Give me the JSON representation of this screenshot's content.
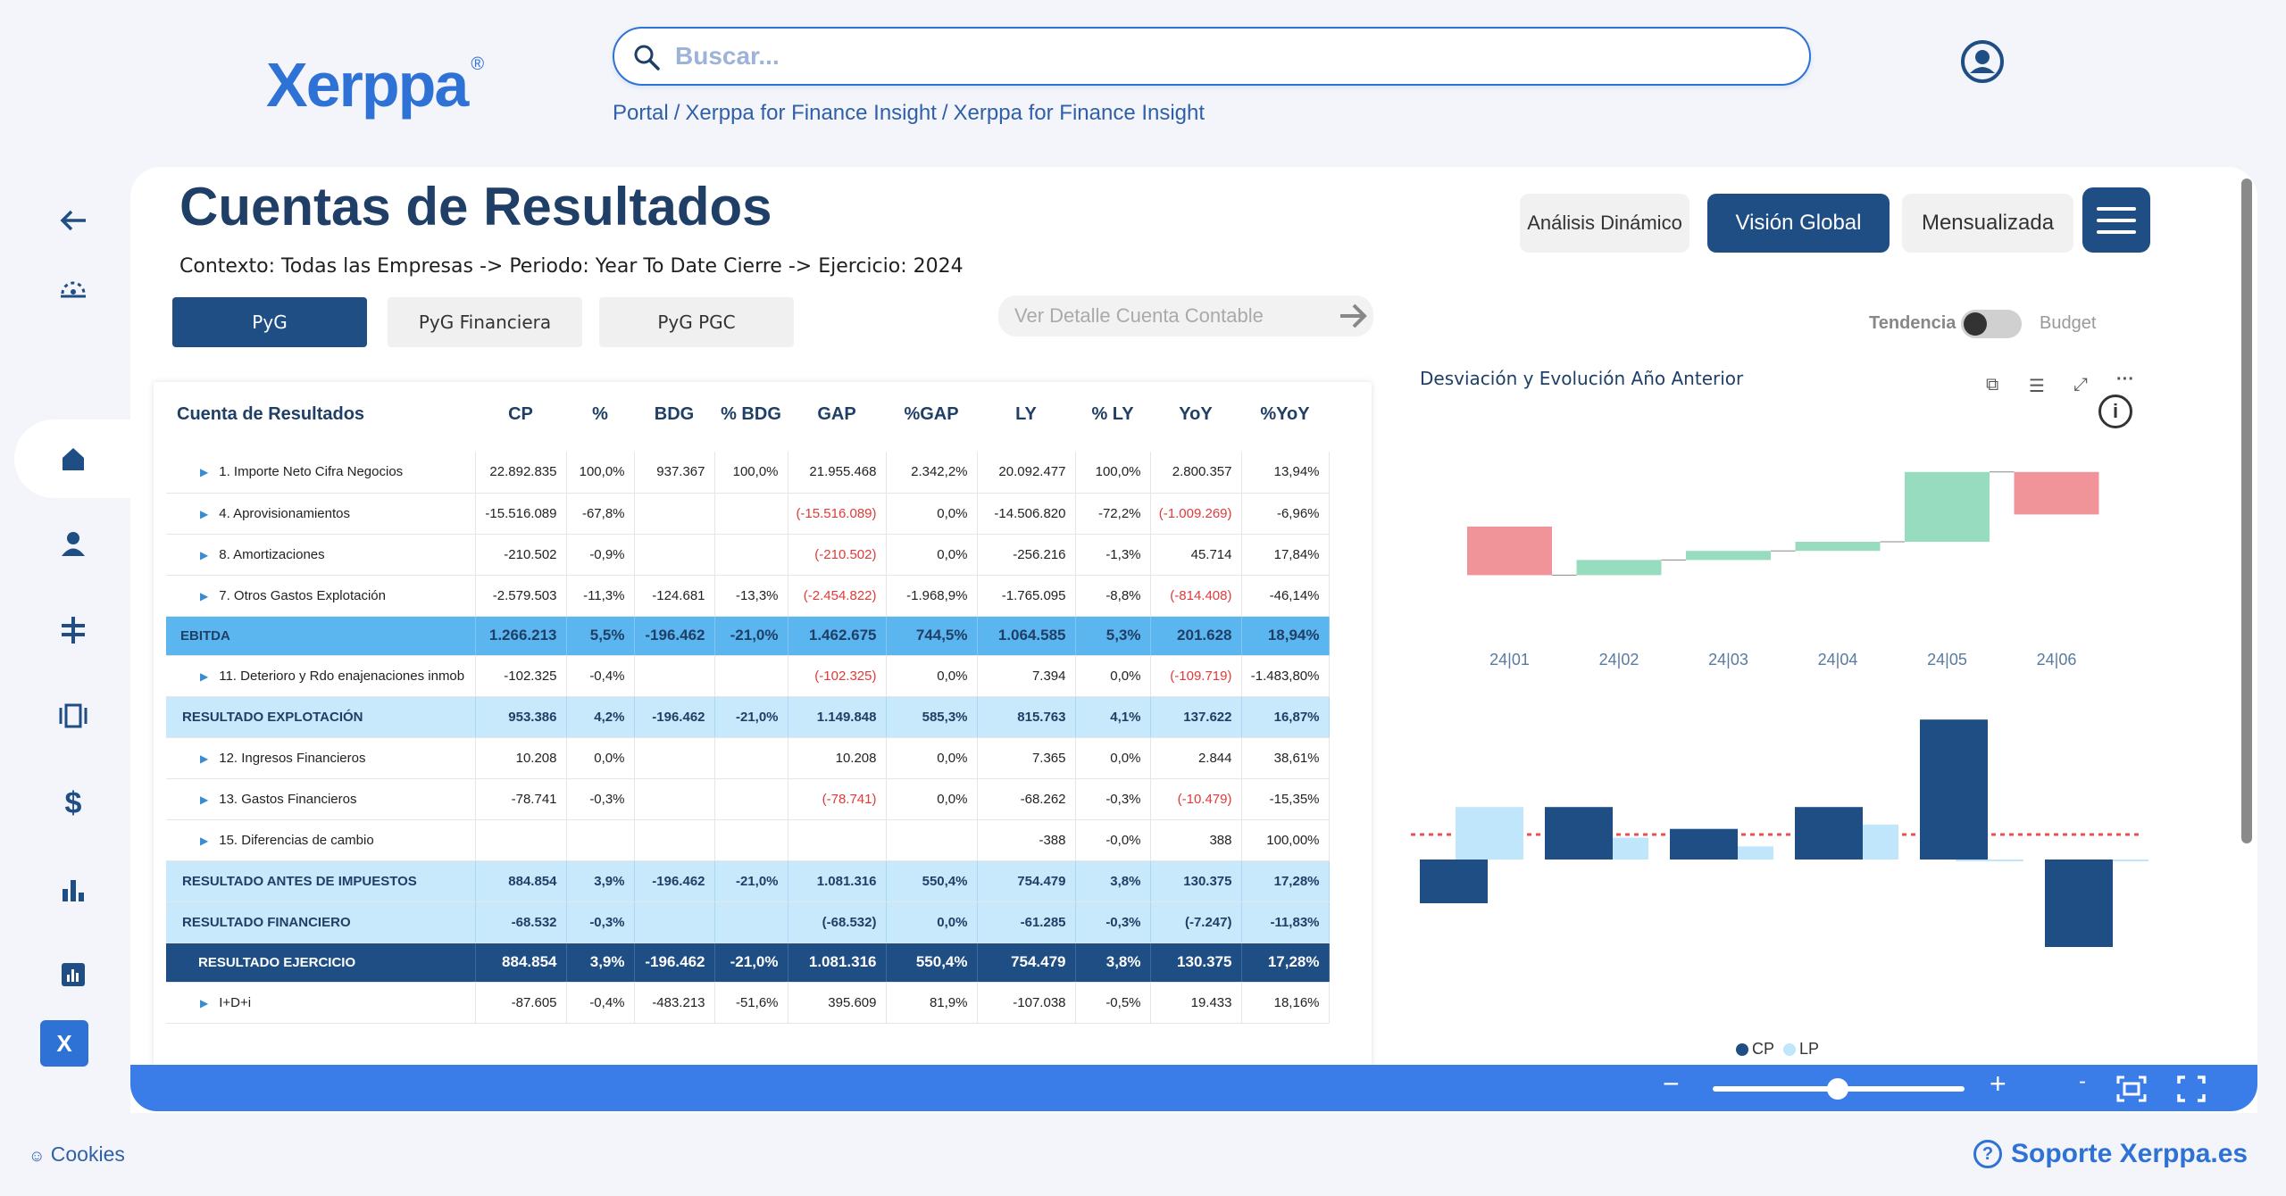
{
  "header": {
    "logo": "Xerppa",
    "logo_mark": "®",
    "search_placeholder": "Buscar...",
    "breadcrumbs": [
      "Portal",
      "Xerppa for Finance Insight",
      "Xerppa for Finance Insight"
    ]
  },
  "sidebar": {
    "items": [
      "back-arrow-icon",
      "dashboard-icon",
      "home-icon",
      "user-icon",
      "adjust-icon",
      "gallery-icon",
      "dollar-icon",
      "bar-chart-icon",
      "report-chart-icon"
    ],
    "x_button": "X"
  },
  "page": {
    "title": "Cuentas de Resultados",
    "context": "Contexto: Todas las Empresas -> Periodo: Year To Date Cierre -> Ejercicio: 2024",
    "buttons": {
      "analisis": "Análisis Dinámico",
      "vision": "Visión Global",
      "mensualizada": "Mensualizada"
    },
    "tabs": [
      "PyG",
      "PyG Financiera",
      "PyG PGC"
    ],
    "detail_placeholder": "Ver Detalle Cuenta Contable",
    "toggle_left": "Tendencia",
    "toggle_right": "Budget"
  },
  "table": {
    "headers": [
      "Cuenta de Resultados",
      "CP",
      "%",
      "BDG",
      "% BDG",
      "GAP",
      "%GAP",
      "LY",
      "% LY",
      "YoY",
      "%YoY"
    ],
    "rows": [
      {
        "type": "item",
        "cells": [
          "1. Importe Neto Cifra Negocios",
          "22.892.835",
          "100,0%",
          "937.367",
          "100,0%",
          "21.955.468",
          "2.342,2%",
          "20.092.477",
          "100,0%",
          "2.800.357",
          "13,94%"
        ]
      },
      {
        "type": "item",
        "cells": [
          "4. Aprovisionamientos",
          "-15.516.089",
          "-67,8%",
          "",
          "",
          "(-15.516.089)",
          "0,0%",
          "-14.506.820",
          "-72,2%",
          "(-1.009.269)",
          "-6,96%"
        ]
      },
      {
        "type": "item",
        "cells": [
          "8. Amortizaciones",
          "-210.502",
          "-0,9%",
          "",
          "",
          "(-210.502)",
          "0,0%",
          "-256.216",
          "-1,3%",
          "45.714",
          "17,84%"
        ]
      },
      {
        "type": "item",
        "cells": [
          "7. Otros Gastos Explotación",
          "-2.579.503",
          "-11,3%",
          "-124.681",
          "-13,3%",
          "(-2.454.822)",
          "-1.968,9%",
          "-1.765.095",
          "-8,8%",
          "(-814.408)",
          "-46,14%"
        ]
      },
      {
        "type": "ebitda",
        "cells": [
          "EBITDA",
          "1.266.213",
          "5,5%",
          "-196.462",
          "-21,0%",
          "1.462.675",
          "744,5%",
          "1.064.585",
          "5,3%",
          "201.628",
          "18,94%"
        ]
      },
      {
        "type": "item",
        "cells": [
          "11. Deterioro y Rdo enajenaciones inmob",
          "-102.325",
          "-0,4%",
          "",
          "",
          "(-102.325)",
          "0,0%",
          "7.394",
          "0,0%",
          "(-109.719)",
          "-1.483,80%"
        ]
      },
      {
        "type": "sub",
        "cells": [
          "RESULTADO EXPLOTACIÓN",
          "953.386",
          "4,2%",
          "-196.462",
          "-21,0%",
          "1.149.848",
          "585,3%",
          "815.763",
          "4,1%",
          "137.622",
          "16,87%"
        ]
      },
      {
        "type": "item",
        "cells": [
          "12. Ingresos Financieros",
          "10.208",
          "0,0%",
          "",
          "",
          "10.208",
          "0,0%",
          "7.365",
          "0,0%",
          "2.844",
          "38,61%"
        ]
      },
      {
        "type": "item",
        "cells": [
          "13. Gastos Financieros",
          "-78.741",
          "-0,3%",
          "",
          "",
          "(-78.741)",
          "0,0%",
          "-68.262",
          "-0,3%",
          "(-10.479)",
          "-15,35%"
        ]
      },
      {
        "type": "item",
        "cells": [
          "15. Diferencias de cambio",
          "",
          "",
          "",
          "",
          "",
          "",
          "-388",
          "-0,0%",
          "388",
          "100,00%"
        ]
      },
      {
        "type": "sub",
        "cells": [
          "RESULTADO ANTES DE IMPUESTOS",
          "884.854",
          "3,9%",
          "-196.462",
          "-21,0%",
          "1.081.316",
          "550,4%",
          "754.479",
          "3,8%",
          "130.375",
          "17,28%"
        ]
      },
      {
        "type": "sub",
        "cells": [
          "RESULTADO FINANCIERO",
          "-68.532",
          "-0,3%",
          "",
          "",
          "(-68.532)",
          "0,0%",
          "-61.285",
          "-0,3%",
          "(-7.247)",
          "-11,83%"
        ]
      },
      {
        "type": "total",
        "cells": [
          "RESULTADO EJERCICIO",
          "884.854",
          "3,9%",
          "-196.462",
          "-21,0%",
          "1.081.316",
          "550,4%",
          "754.479",
          "3,8%",
          "130.375",
          "17,28%"
        ]
      },
      {
        "type": "item",
        "cells": [
          "I+D+i",
          "-87.605",
          "-0,4%",
          "-483.213",
          "-51,6%",
          "395.609",
          "81,9%",
          "-107.038",
          "-0,5%",
          "19.433",
          "18,16%"
        ]
      }
    ]
  },
  "chart_data": [
    {
      "type": "bar",
      "title": "Desviación y Evolución Año Anterior",
      "categories": [
        "24|01",
        "24|02",
        "24|03",
        "24|04",
        "24|05",
        "24|06"
      ],
      "series": [
        {
          "values": [
            -0.8,
            0.25,
            0.15,
            0.15,
            1.15,
            -0.7
          ]
        }
      ]
    },
    {
      "type": "bar",
      "categories": [
        "24|01",
        "24|02",
        "24|03",
        "24|04",
        "24|05",
        "24|06"
      ],
      "series": [
        {
          "name": "CP",
          "values": [
            -0.5,
            0.6,
            0.35,
            0.6,
            1.6,
            -1.0
          ]
        },
        {
          "name": "LP",
          "values": [
            0.6,
            0.25,
            0.15,
            0.4,
            0.0,
            -0.02
          ]
        }
      ]
    }
  ],
  "colors": {
    "primary": "#1f4e85",
    "accent": "#2f72d6",
    "ebitda": "#5bb6f0",
    "positive": "#98dcc0",
    "negative": "#f0949a",
    "lp": "#bfe6fb",
    "refline": "#e85050"
  },
  "footer": {
    "cookies": "Cookies",
    "support": "Soporte Xerppa.es"
  }
}
